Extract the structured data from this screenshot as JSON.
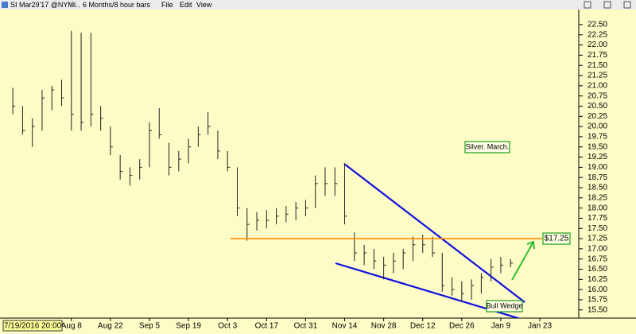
{
  "toolbar": {
    "symbol": "SI Mar29'17 @NYM...",
    "period": "6 Months/8 hour bars",
    "menu": [
      "File",
      "Edit",
      "View"
    ]
  },
  "chart_data": {
    "type": "ohlc",
    "color": "#222222",
    "cursor_label": "7/19/2016 20:00",
    "categories": [
      null,
      null,
      null,
      null,
      null,
      null,
      "Aug 8",
      null,
      null,
      null,
      "Aug 22",
      null,
      null,
      null,
      "Sep 5",
      null,
      null,
      null,
      "Sep 19",
      null,
      null,
      null,
      "Oct 3",
      null,
      null,
      null,
      "Oct 17",
      null,
      null,
      null,
      "Oct 31",
      null,
      null,
      null,
      "Nov 14",
      null,
      null,
      null,
      "Nov 28",
      null,
      null,
      null,
      "Dec 12",
      null,
      null,
      null,
      "Dec 26",
      null,
      null,
      null,
      "Jan 9",
      null,
      null,
      null,
      "Jan 23",
      null,
      null,
      null
    ],
    "high": [
      20.95,
      20.5,
      20.2,
      20.9,
      21.0,
      21.15,
      22.35,
      22.3,
      22.3,
      20.5,
      20.0,
      19.3,
      19.0,
      19.2,
      20.1,
      20.45,
      19.6,
      19.4,
      19.7,
      20.0,
      20.35,
      19.9,
      19.4,
      19.0,
      18.0,
      17.9,
      17.95,
      18.0,
      18.05,
      18.15,
      18.2,
      18.8,
      19.0,
      19.0,
      19.1,
      17.4,
      17.1,
      17.0,
      16.8,
      16.9,
      17.0,
      17.3,
      17.35,
      17.3,
      16.9,
      16.3,
      16.2,
      16.25,
      16.4,
      16.75,
      16.8,
      16.75,
      null,
      null,
      null,
      null,
      null,
      null
    ],
    "low": [
      20.3,
      19.8,
      19.5,
      19.9,
      20.4,
      20.5,
      19.9,
      19.9,
      20.0,
      19.9,
      19.3,
      18.7,
      18.55,
      18.7,
      19.0,
      19.7,
      18.8,
      18.9,
      19.1,
      19.5,
      19.8,
      19.2,
      18.9,
      17.8,
      17.2,
      17.45,
      17.5,
      17.6,
      17.65,
      17.7,
      17.8,
      18.0,
      18.3,
      18.3,
      17.6,
      16.7,
      16.6,
      16.5,
      16.25,
      16.4,
      16.5,
      16.7,
      16.9,
      16.8,
      15.95,
      15.85,
      15.7,
      15.75,
      15.9,
      16.2,
      16.4,
      16.55,
      null,
      null,
      null,
      null,
      null,
      null
    ],
    "close": [
      20.5,
      19.9,
      20.0,
      20.7,
      20.9,
      20.7,
      20.3,
      20.1,
      20.3,
      20.2,
      19.5,
      18.9,
      18.8,
      19.0,
      19.9,
      19.8,
      19.0,
      19.2,
      19.5,
      19.8,
      20.0,
      19.4,
      19.0,
      18.0,
      17.6,
      17.7,
      17.7,
      17.8,
      17.85,
      18.0,
      18.0,
      18.6,
      18.6,
      18.6,
      17.8,
      16.9,
      16.9,
      16.7,
      16.6,
      16.7,
      16.9,
      17.1,
      17.1,
      16.9,
      16.1,
      16.0,
      15.9,
      16.1,
      16.3,
      16.55,
      16.6,
      16.65,
      null,
      null,
      null,
      null,
      null,
      null
    ],
    "ylim": [
      15.3,
      22.87
    ],
    "yticks": [
      {
        "value": 15.5,
        "label": "15.50"
      },
      {
        "value": 15.75,
        "label": "15.75"
      },
      {
        "value": 16,
        "label": "16.00"
      },
      {
        "value": 16.25,
        "label": "16.25"
      },
      {
        "value": 16.5,
        "label": "16.50"
      },
      {
        "value": 16.75,
        "label": "16.75"
      },
      {
        "value": 17,
        "label": "17.00"
      },
      {
        "value": 17.25,
        "label": "17.25"
      },
      {
        "value": 17.5,
        "label": "17.50"
      },
      {
        "value": 17.75,
        "label": "17.75"
      },
      {
        "value": 18,
        "label": "18.00"
      },
      {
        "value": 18.25,
        "label": "18.25"
      },
      {
        "value": 18.5,
        "label": "18.50"
      },
      {
        "value": 18.75,
        "label": "18.75"
      },
      {
        "value": 19,
        "label": "19.00"
      },
      {
        "value": 19.25,
        "label": "19.25"
      },
      {
        "value": 19.5,
        "label": "19.50"
      },
      {
        "value": 19.75,
        "label": "19.75"
      },
      {
        "value": 20,
        "label": "20.00"
      },
      {
        "value": 20.25,
        "label": "20.25"
      },
      {
        "value": 20.5,
        "label": "20.50"
      },
      {
        "value": 20.75,
        "label": "20.75"
      },
      {
        "value": 21,
        "label": "21.00"
      },
      {
        "value": 21.25,
        "label": "21.25"
      },
      {
        "value": 21.5,
        "label": "21.50"
      },
      {
        "value": 21.75,
        "label": "21.75"
      },
      {
        "value": 22,
        "label": "22.00"
      },
      {
        "value": 22.25,
        "label": "22.25"
      },
      {
        "value": 22.5,
        "label": "22.50"
      }
    ],
    "hline": {
      "value": 17.25,
      "label": "$17.25",
      "color": "#ff8c00"
    },
    "annotations": [
      {
        "text": "Silver. March."
      },
      {
        "text": "Bull Wedge"
      }
    ]
  }
}
